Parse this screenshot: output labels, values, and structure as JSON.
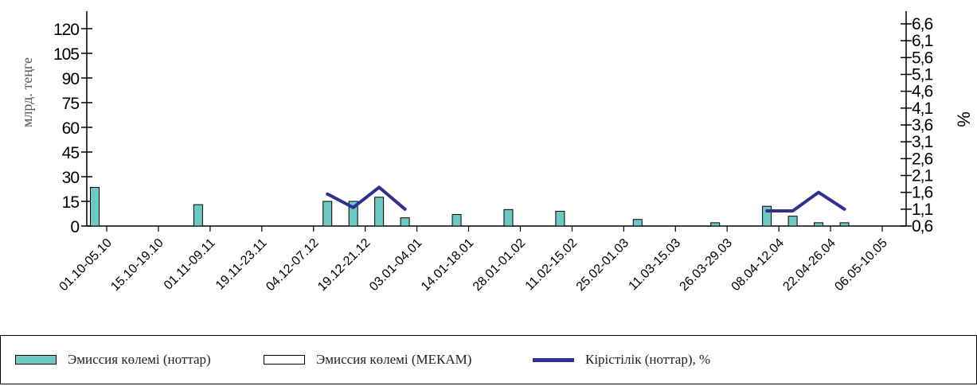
{
  "chart_data": {
    "type": "bar+line",
    "categories": [
      "01.10-05.10",
      "15.10-19.10",
      "01.11-09.11",
      "19.11-23.11",
      "04.12-07.12",
      "19.12-21.12",
      "03.01-04.01",
      "14.01-18.01",
      "28.01-01.02",
      "11.02-15.02",
      "25.02-01.03",
      "11.03-15.03",
      "26.03-29.03",
      "08.04-12.04",
      "22.04-26.04",
      "06.05-10.05"
    ],
    "bars": [
      {
        "pos": 0.0,
        "value": 23.5
      },
      {
        "pos": 4.0,
        "value": 13
      },
      {
        "pos": 9.0,
        "value": 15
      },
      {
        "pos": 10.0,
        "value": 15
      },
      {
        "pos": 11.0,
        "value": 17.5
      },
      {
        "pos": 12.0,
        "value": 5
      },
      {
        "pos": 14.0,
        "value": 7
      },
      {
        "pos": 16.0,
        "value": 10
      },
      {
        "pos": 18.0,
        "value": 9
      },
      {
        "pos": 21.0,
        "value": 4
      },
      {
        "pos": 24.0,
        "value": 2
      },
      {
        "pos": 26.0,
        "value": 12
      },
      {
        "pos": 27.0,
        "value": 6
      },
      {
        "pos": 28.0,
        "value": 2
      },
      {
        "pos": 29.0,
        "value": 2
      }
    ],
    "yield_lines": [
      {
        "points": [
          {
            "pos": 9.0,
            "value": 1.55
          },
          {
            "pos": 10.0,
            "value": 1.15
          },
          {
            "pos": 11.0,
            "value": 1.75
          },
          {
            "pos": 12.0,
            "value": 1.1
          }
        ]
      },
      {
        "points": [
          {
            "pos": 26.0,
            "value": 1.05
          },
          {
            "pos": 27.0,
            "value": 1.05
          },
          {
            "pos": 28.0,
            "value": 1.6
          },
          {
            "pos": 29.0,
            "value": 1.1
          }
        ]
      }
    ],
    "y_left": {
      "label": "млрд. теңге",
      "ticks": [
        0,
        15,
        30,
        45,
        60,
        75,
        90,
        105,
        120
      ],
      "range": [
        0,
        120
      ]
    },
    "y_right": {
      "label": "%",
      "ticks": [
        "0,6",
        "1,1",
        "1,6",
        "2,1",
        "2,6",
        "3,1",
        "3,6",
        "4,1",
        "4,6",
        "5,1",
        "5,6",
        "6,1",
        "6,6"
      ],
      "range": [
        0.6,
        6.6
      ]
    },
    "legend_position": "bottom",
    "series": [
      {
        "name": "Эмиссия көлемі (ноттар)",
        "kind": "bar",
        "color": "#6ec9c3"
      },
      {
        "name": "Эмиссия көлемі (МЕКАМ)",
        "kind": "bar",
        "color": "#ffffff"
      },
      {
        "name": "Кірістілік (ноттар), %",
        "kind": "line",
        "color": "#2e3192"
      }
    ]
  },
  "colors": {
    "bar_fill": "#6ec9c3",
    "bar_stroke": "#000000",
    "line": "#2e3192",
    "axis": "#000000"
  }
}
